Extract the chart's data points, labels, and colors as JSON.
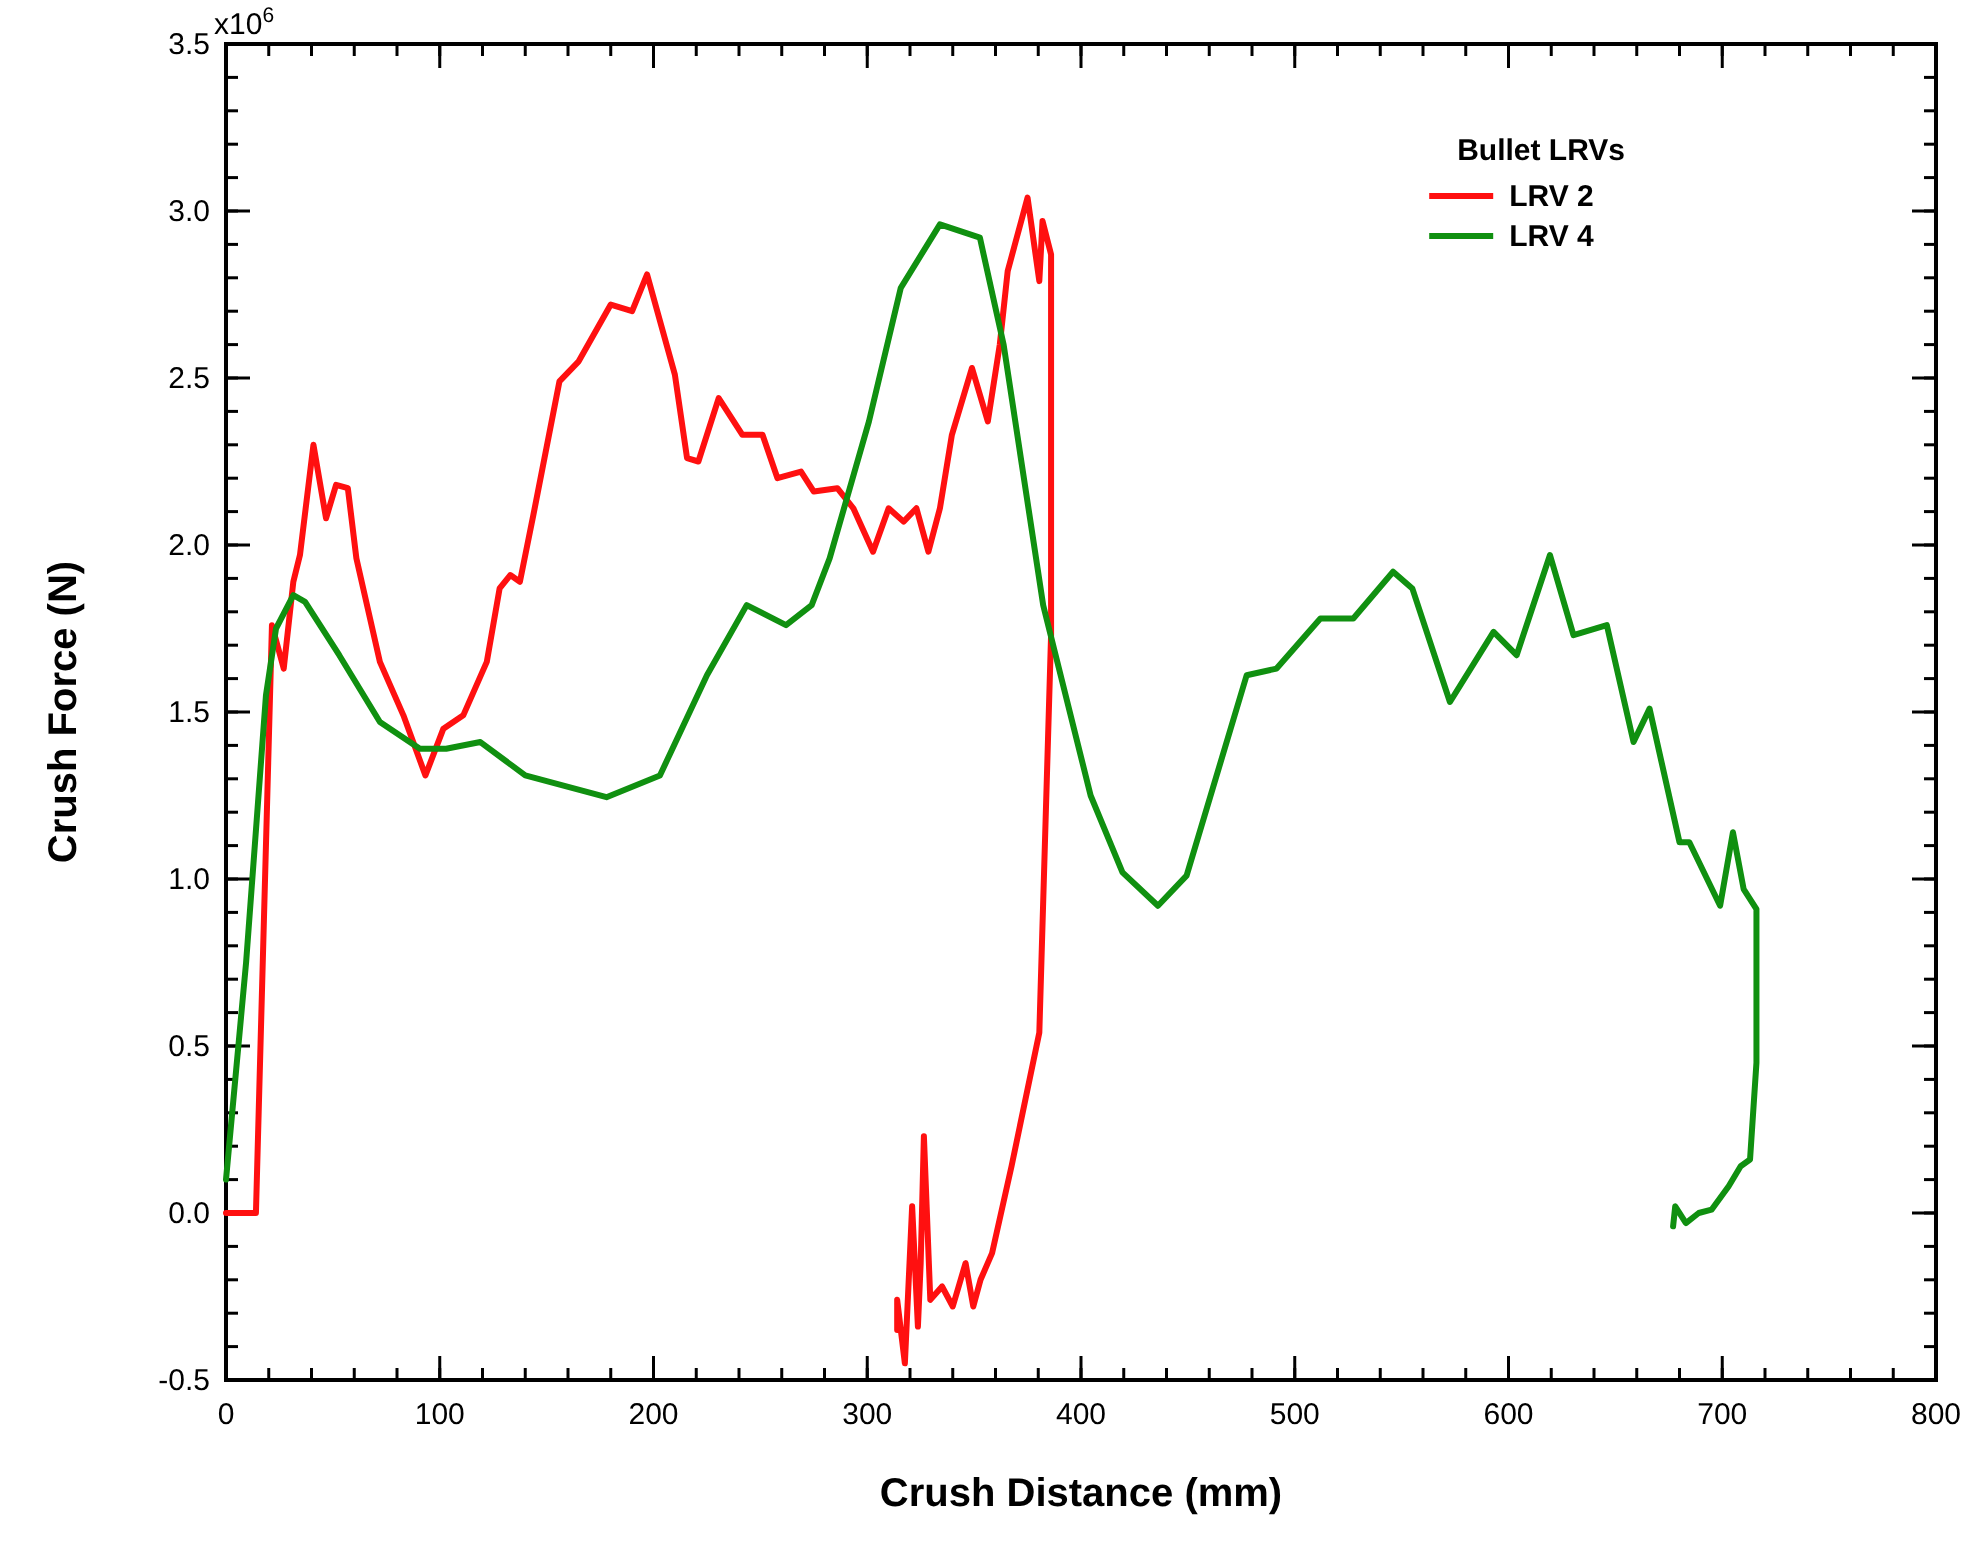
{
  "chart_data": {
    "type": "line",
    "xlabel": "Crush Distance (mm)",
    "ylabel": "Crush Force (N)",
    "legend_title": "Bullet LRVs",
    "legend": "top right",
    "grid": false,
    "marker": "none",
    "line_style": "solid",
    "annotations": [
      "x10$^{6}$"
    ],
    "xlim": [
      0,
      800
    ],
    "xticks": [
      0,
      100,
      200,
      300,
      400,
      500,
      600,
      700,
      800
    ],
    "ylim": [
      -0.5,
      3.5
    ],
    "yticks": [
      {
        "value": -0.5,
        "label": "-0.5"
      },
      {
        "value": 0,
        "label": "0.0"
      },
      {
        "value": 0.5,
        "label": "0.5"
      },
      {
        "value": 1,
        "label": "1.0"
      },
      {
        "value": 1.5,
        "label": "1.5"
      },
      {
        "value": 2,
        "label": "2.0"
      },
      {
        "value": 2.5,
        "label": "2.5"
      },
      {
        "value": 3,
        "label": "3.0"
      },
      3.5
    ],
    "series": [
      {
        "name": "LRV 2",
        "color": "#ff1010",
        "x": [
          0,
          14,
          21.5,
          27,
          31.5,
          34.6,
          40.9,
          46.8,
          51.5,
          57,
          61,
          72,
          83,
          93.3,
          101.7,
          111,
          122,
          128,
          133,
          137.5,
          143.8,
          156,
          165,
          180,
          190,
          197,
          210,
          215.7,
          221,
          230.5,
          241.6,
          251,
          258,
          269,
          275,
          286,
          293.5,
          302.7,
          310,
          317,
          323,
          328.6,
          334,
          339.6,
          349,
          356.4,
          362,
          365.7,
          375,
          380.5,
          382,
          386,
          386,
          380.5,
          367.5,
          358.4,
          353,
          349.6,
          346,
          340,
          335,
          329.5,
          326.5,
          325,
          323.7,
          321,
          317.6,
          314,
          314
        ],
        "values": [
          0,
          0,
          1.76,
          1.63,
          1.89,
          1.97,
          2.3,
          2.08,
          2.18,
          2.17,
          1.96,
          1.65,
          1.49,
          1.31,
          1.45,
          1.49,
          1.65,
          1.87,
          1.91,
          1.89,
          2.09,
          2.49,
          2.55,
          2.72,
          2.7,
          2.81,
          2.51,
          2.26,
          2.25,
          2.44,
          2.33,
          2.33,
          2.2,
          2.22,
          2.16,
          2.17,
          2.11,
          1.98,
          2.11,
          2.07,
          2.11,
          1.98,
          2.11,
          2.33,
          2.53,
          2.37,
          2.6,
          2.82,
          3.04,
          2.79,
          2.97,
          2.87,
          1.73,
          0.54,
          0.14,
          -0.12,
          -0.2,
          -0.28,
          -0.15,
          -0.28,
          -0.22,
          -0.26,
          0.23,
          -0.15,
          -0.34,
          0.02,
          -0.45,
          -0.26,
          -0.35
        ]
      },
      {
        "name": "LRV 4",
        "color": "#109010",
        "x": [
          0,
          9.4,
          18.7,
          23.4,
          31.5,
          37,
          53,
          72,
          90.7,
          103,
          119,
          140,
          178,
          203,
          225,
          243.6,
          262,
          274,
          282.4,
          300.8,
          315.7,
          334,
          352.7,
          363.8,
          382.3,
          404.5,
          419.4,
          436,
          449.4,
          477.5,
          491.5,
          512,
          527.4,
          546,
          555,
          572.6,
          593,
          603.8,
          619.4,
          630.4,
          646,
          658.5,
          666,
          680,
          684.6,
          699,
          705,
          710,
          716,
          716,
          713,
          708.6,
          703,
          695,
          689,
          683,
          678,
          677
        ],
        "values": [
          0.1,
          0.75,
          1.55,
          1.75,
          1.85,
          1.83,
          1.67,
          1.47,
          1.39,
          1.39,
          1.41,
          1.31,
          1.245,
          1.31,
          1.61,
          1.82,
          1.76,
          1.82,
          1.96,
          2.37,
          2.77,
          2.96,
          2.92,
          2.6,
          1.82,
          1.25,
          1.02,
          0.92,
          1.01,
          1.61,
          1.63,
          1.78,
          1.78,
          1.92,
          1.87,
          1.53,
          1.74,
          1.67,
          1.97,
          1.73,
          1.76,
          1.41,
          1.51,
          1.11,
          1.11,
          0.92,
          1.14,
          0.97,
          0.91,
          0.45,
          0.16,
          0.14,
          0.08,
          0.01,
          0,
          -0.03,
          0.02,
          -0.04
        ]
      }
    ]
  }
}
